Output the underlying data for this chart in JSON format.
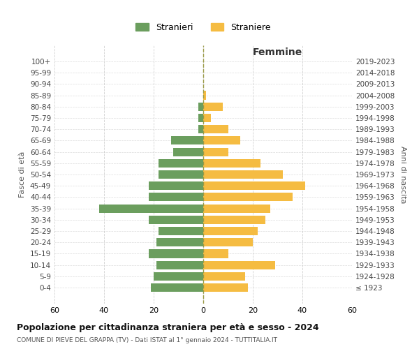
{
  "age_groups": [
    "100+",
    "95-99",
    "90-94",
    "85-89",
    "80-84",
    "75-79",
    "70-74",
    "65-69",
    "60-64",
    "55-59",
    "50-54",
    "45-49",
    "40-44",
    "35-39",
    "30-34",
    "25-29",
    "20-24",
    "15-19",
    "10-14",
    "5-9",
    "0-4"
  ],
  "birth_years": [
    "≤ 1923",
    "1924-1928",
    "1929-1933",
    "1934-1938",
    "1939-1943",
    "1944-1948",
    "1949-1953",
    "1954-1958",
    "1959-1963",
    "1964-1968",
    "1969-1973",
    "1974-1978",
    "1979-1983",
    "1984-1988",
    "1989-1993",
    "1994-1998",
    "1999-2003",
    "2004-2008",
    "2009-2013",
    "2014-2018",
    "2019-2023"
  ],
  "males": [
    0,
    0,
    0,
    0,
    2,
    2,
    2,
    13,
    12,
    18,
    18,
    22,
    22,
    42,
    22,
    18,
    19,
    22,
    19,
    20,
    21
  ],
  "females": [
    0,
    0,
    0,
    1,
    8,
    3,
    10,
    15,
    10,
    23,
    32,
    41,
    36,
    27,
    25,
    22,
    20,
    10,
    29,
    17,
    18
  ],
  "male_color": "#6b9e5e",
  "female_color": "#f5bc42",
  "grid_color": "#cccccc",
  "title": "Popolazione per cittadinanza straniera per età e sesso - 2024",
  "subtitle": "COMUNE DI PIEVE DEL GRAPPA (TV) - Dati ISTAT al 1° gennaio 2024 - TUTTITALIA.IT",
  "xlabel_right": "Femmine",
  "ylabel_left": "Fasce di età",
  "ylabel_right": "Anni di nascita",
  "legend_stranieri": "Stranieri",
  "legend_straniere": "Straniere",
  "xlim": 60,
  "bar_height": 0.75
}
